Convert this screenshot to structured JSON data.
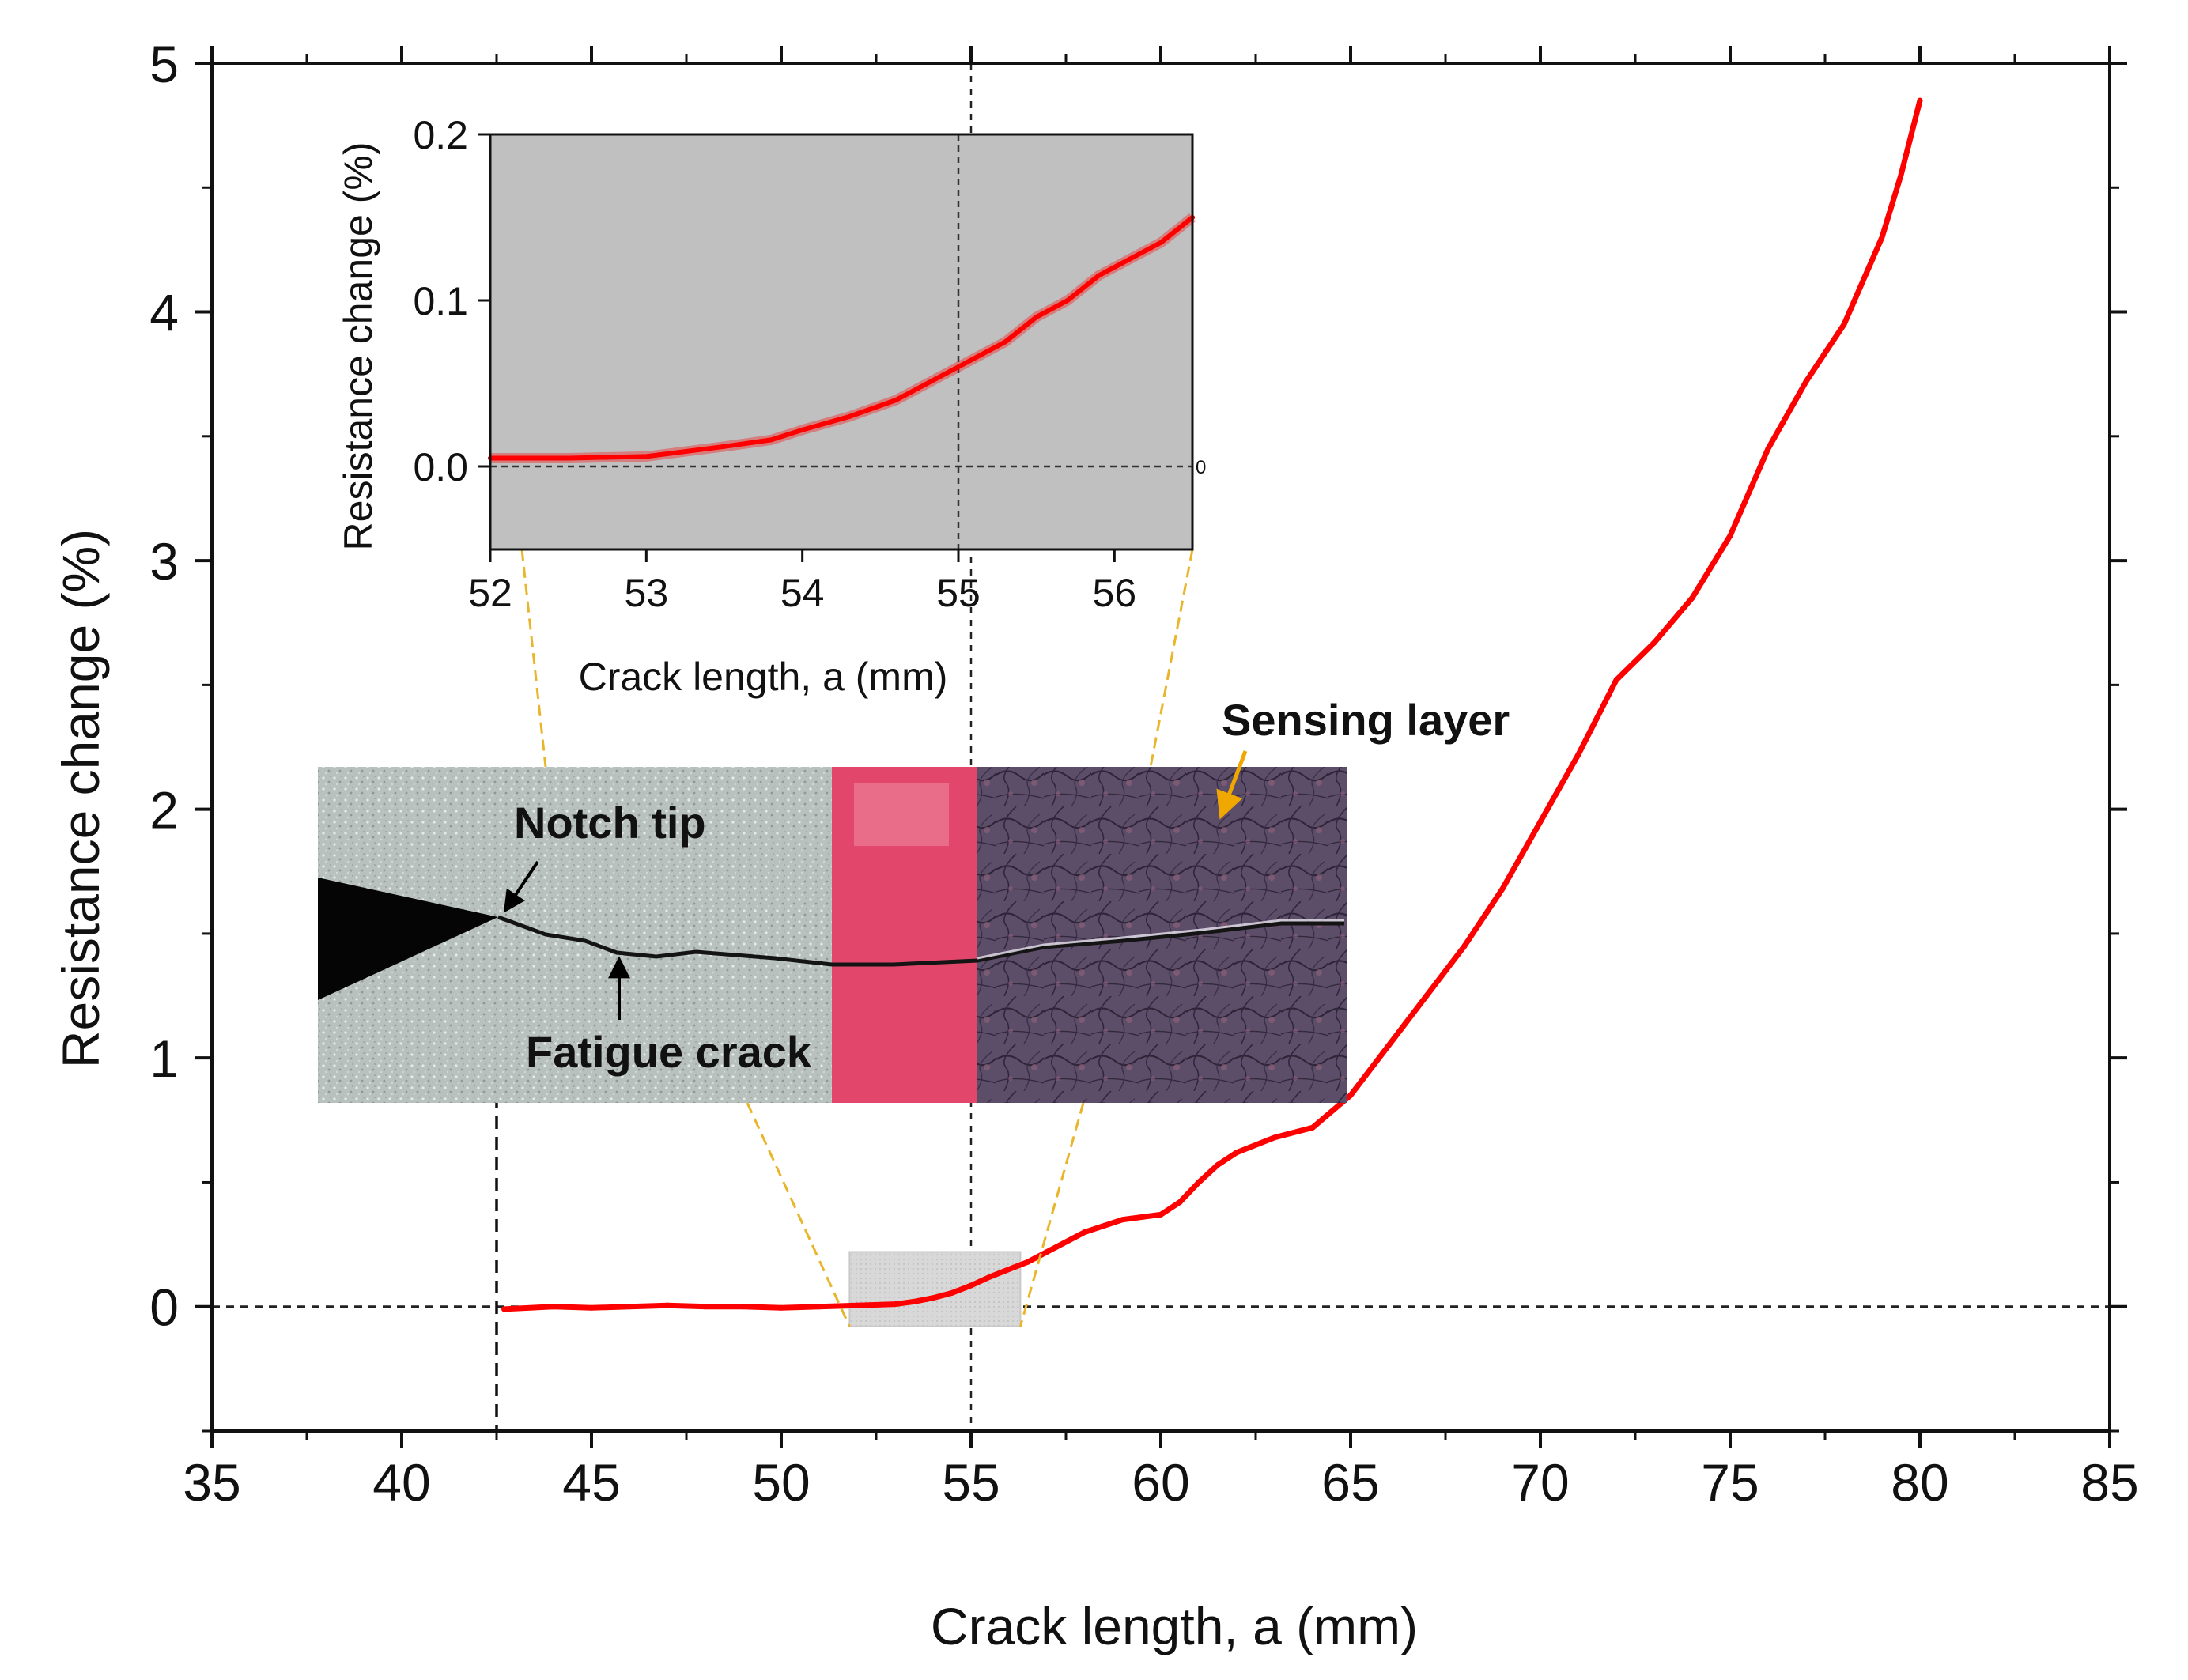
{
  "chart_data": [
    {
      "name": "main",
      "type": "line",
      "xlabel": "Crack length, a (mm)",
      "ylabel": "Resistance change (%)",
      "xlim": [
        35,
        85
      ],
      "ylim": [
        -0.5,
        5
      ],
      "xticks": [
        35,
        40,
        45,
        50,
        55,
        60,
        65,
        70,
        75,
        80,
        85
      ],
      "yticks": [
        0,
        1,
        2,
        3,
        4,
        5
      ],
      "reference_lines": {
        "y_zero": 0,
        "notch_tip_x": 42.5,
        "center_x": 55
      },
      "zoom_region": {
        "x": [
          51.8,
          56.3
        ],
        "y": [
          -0.08,
          0.22
        ]
      },
      "series": [
        {
          "name": "Resistance change",
          "color": "#ff0000",
          "x": [
            42.7,
            44,
            45,
            46,
            47,
            48,
            49,
            50,
            51,
            52,
            53,
            53.5,
            54,
            54.5,
            55,
            55.5,
            56,
            56.5,
            57,
            58,
            59,
            60,
            60.5,
            61,
            61.5,
            62,
            63,
            64,
            65,
            66,
            67,
            68,
            69,
            70,
            71,
            72,
            73,
            74,
            75,
            76,
            77,
            78,
            79,
            79.5,
            80
          ],
          "y": [
            -0.01,
            0.0,
            -0.005,
            0.0,
            0.005,
            0.0,
            0.0,
            -0.005,
            0.0,
            0.005,
            0.01,
            0.02,
            0.035,
            0.055,
            0.085,
            0.12,
            0.15,
            0.18,
            0.22,
            0.3,
            0.35,
            0.37,
            0.42,
            0.5,
            0.57,
            0.62,
            0.68,
            0.72,
            0.85,
            1.05,
            1.25,
            1.45,
            1.68,
            1.95,
            2.22,
            2.52,
            2.67,
            2.85,
            3.1,
            3.45,
            3.72,
            3.95,
            4.3,
            4.55,
            4.85
          ]
        }
      ]
    },
    {
      "name": "inset",
      "type": "line",
      "xlabel": "Crack length, a (mm)",
      "ylabel": "Resistance change (%)",
      "xlim": [
        52,
        56.5
      ],
      "ylim": [
        -0.05,
        0.2
      ],
      "xticks": [
        52,
        53,
        54,
        55,
        56
      ],
      "yticks": [
        0.0,
        0.1,
        0.2
      ],
      "ytick_labels": [
        "0.0",
        "0.1",
        "0.2"
      ],
      "right_axis_marker": "0",
      "background": "#c0c0c0",
      "series": [
        {
          "name": "Resistance change (zoom)",
          "color": "#ff0000",
          "x": [
            52.0,
            52.5,
            53.0,
            53.5,
            53.8,
            54.0,
            54.3,
            54.6,
            54.9,
            55.1,
            55.3,
            55.5,
            55.7,
            55.9,
            56.1,
            56.3,
            56.5
          ],
          "y": [
            0.005,
            0.005,
            0.006,
            0.012,
            0.016,
            0.022,
            0.03,
            0.04,
            0.055,
            0.065,
            0.075,
            0.09,
            0.1,
            0.115,
            0.125,
            0.135,
            0.15
          ]
        }
      ]
    }
  ],
  "photo": {
    "annotations": {
      "notch_tip": "Notch tip",
      "fatigue_crack": "Fatigue crack",
      "sensing_layer": "Sensing layer"
    },
    "colors": {
      "substrate": "#b9c1bf",
      "notch": "#050505",
      "pink_layer": "#e2476b",
      "sensing_layer": "#5c4d68",
      "guide_lines": "#e8b52b"
    }
  }
}
